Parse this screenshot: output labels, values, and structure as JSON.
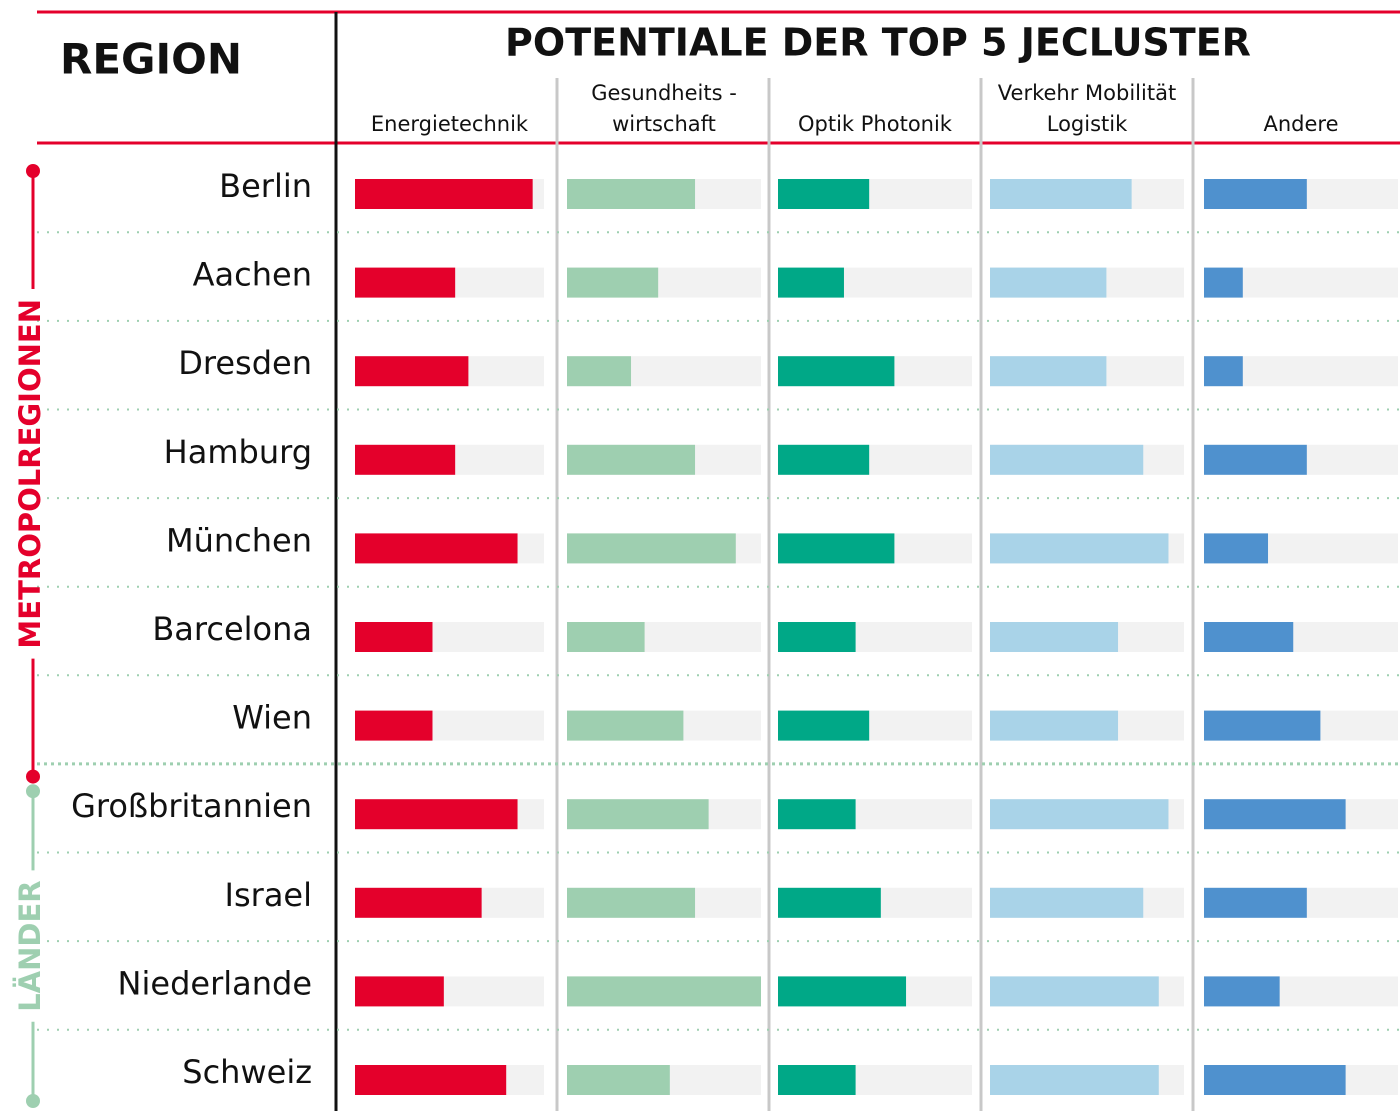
{
  "chart_data": {
    "type": "bar",
    "title": "POTENTIALE DER TOP 5 JECLUSTER",
    "row_header": "REGION",
    "groups": [
      {
        "name": "METROPOLREGIONEN",
        "color": "#e4002b",
        "categories": [
          "Berlin",
          "Aachen",
          "Dresden",
          "Hamburg",
          "München",
          "Barcelona",
          "Wien"
        ]
      },
      {
        "name": "LÄNDER",
        "color": "#9ecfb0",
        "categories": [
          "Großbritannien",
          "Israel",
          "Niederlande",
          "Schweiz"
        ]
      }
    ],
    "xlim": [
      0,
      100
    ],
    "track_color": "#f2f2f2",
    "series": [
      {
        "name": "Energietechnik",
        "color": "#e4002b",
        "values": [
          94,
          53,
          60,
          53,
          86,
          41,
          41,
          86,
          67,
          47,
          80
        ]
      },
      {
        "name": "Gesundheits -\nwirtschaft",
        "color": "#9ecfb0",
        "values": [
          66,
          47,
          33,
          66,
          87,
          40,
          60,
          73,
          66,
          100,
          53
        ]
      },
      {
        "name": "Optik Photonik",
        "color": "#00a887",
        "values": [
          47,
          34,
          60,
          47,
          60,
          40,
          47,
          40,
          53,
          66,
          40
        ]
      },
      {
        "name": "Verkehr Mobilität\nLogistik",
        "color": "#a9d3e8",
        "values": [
          73,
          60,
          60,
          79,
          92,
          66,
          66,
          92,
          79,
          87,
          87
        ]
      },
      {
        "name": "Andere",
        "color": "#4f91ce",
        "values": [
          53,
          20,
          20,
          53,
          33,
          46,
          60,
          73,
          53,
          39,
          73
        ]
      }
    ]
  }
}
